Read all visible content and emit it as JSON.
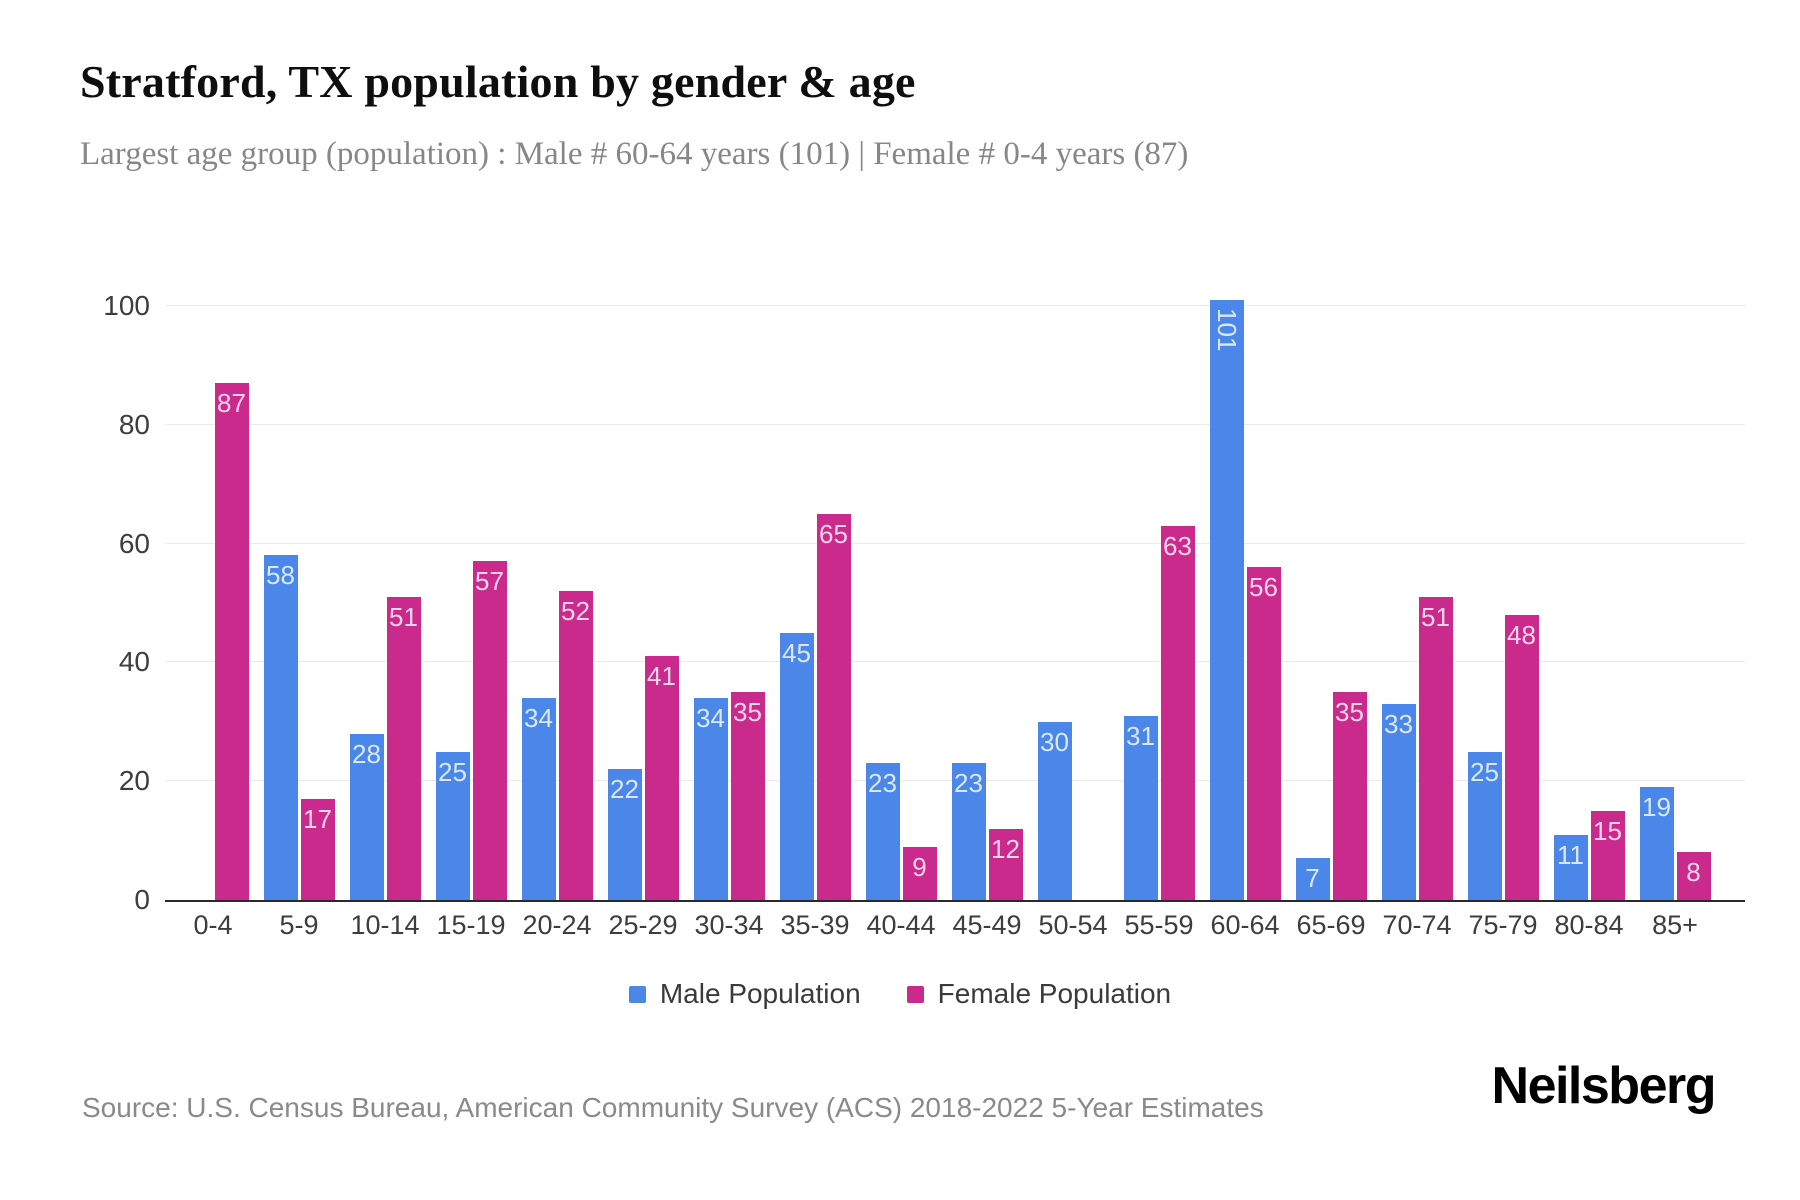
{
  "header": {
    "title": "Stratford, TX population by gender & age",
    "subtitle": "Largest age group (population) : Male # 60-64 years (101) | Female # 0-4 years (87)"
  },
  "chart_data": {
    "type": "bar",
    "title": "Stratford, TX population by gender & age",
    "categories": [
      "0-4",
      "5-9",
      "10-14",
      "15-19",
      "20-24",
      "25-29",
      "30-34",
      "35-39",
      "40-44",
      "45-49",
      "50-54",
      "55-59",
      "60-64",
      "65-69",
      "70-74",
      "75-79",
      "80-84",
      "85+"
    ],
    "series": [
      {
        "name": "Male Population",
        "color": "#4a87e8",
        "values": [
          0,
          58,
          28,
          25,
          34,
          22,
          34,
          45,
          23,
          23,
          30,
          31,
          101,
          7,
          33,
          25,
          11,
          19
        ]
      },
      {
        "name": "Female Population",
        "color": "#ca2a8c",
        "values": [
          87,
          17,
          51,
          57,
          52,
          41,
          35,
          65,
          9,
          12,
          0,
          63,
          56,
          35,
          51,
          48,
          15,
          8
        ]
      }
    ],
    "xlabel": "",
    "ylabel": "",
    "yticks": [
      0,
      20,
      40,
      60,
      80,
      100
    ],
    "ylim": [
      0,
      100
    ],
    "grid": true,
    "legend_position": "bottom",
    "bar_label_color": "rgba(255,255,255,0.8)",
    "note": "zero-value bars are not drawn; 101 label is rotated vertically inside its bar"
  },
  "footer": {
    "source": "Source: U.S. Census Bureau, American Community Survey (ACS) 2018-2022 5-Year Estimates",
    "brand": "Neilsberg"
  }
}
